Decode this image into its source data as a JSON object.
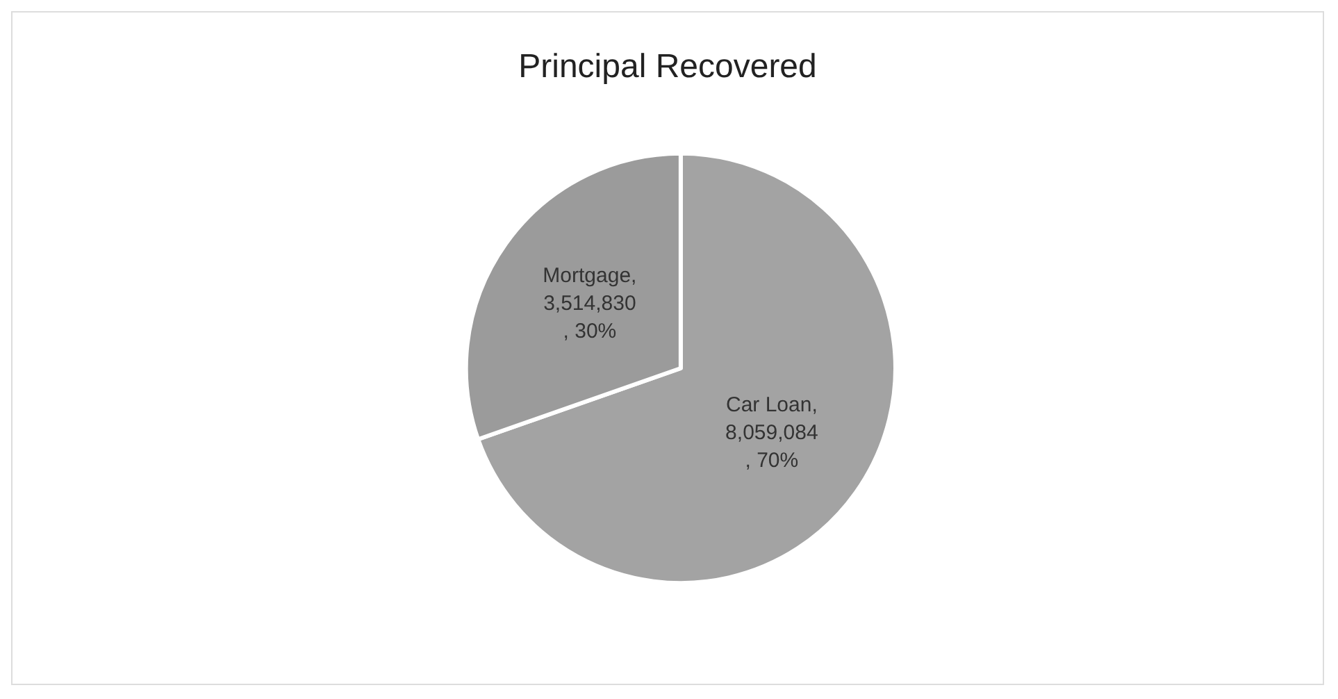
{
  "chart_data": {
    "type": "pie",
    "title": "Principal Recovered",
    "categories": [
      "Car Loan",
      "Mortgage"
    ],
    "values": [
      8059084,
      3514830
    ],
    "value_labels": [
      ", 8,059,084, 70%",
      ", 3,514,830, 30%"
    ],
    "colors": [
      "#a3a3a3",
      "#9b9b9b"
    ],
    "legend": false
  }
}
